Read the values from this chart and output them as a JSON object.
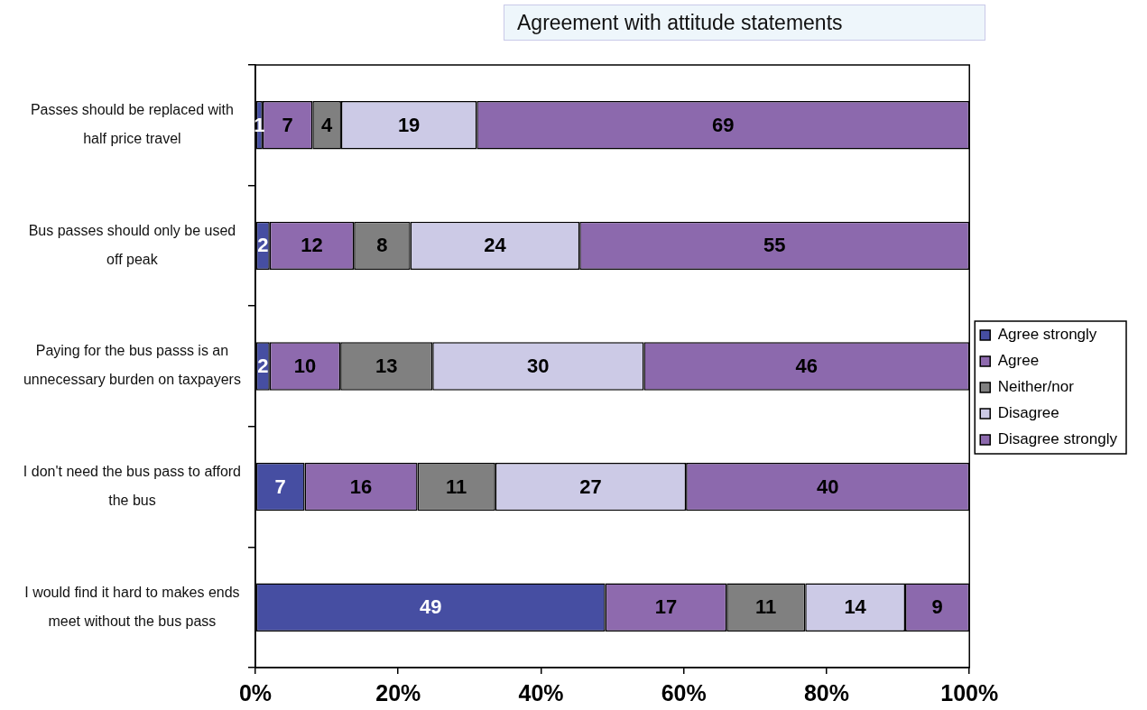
{
  "chart_data": {
    "type": "bar",
    "orientation": "horizontal",
    "stacked": true,
    "title": "Agreement with attitude statements",
    "categories": [
      "Passes should be replaced with half price travel",
      "Bus passes should only be used off peak",
      "Paying for the bus passs is an unnecessary burden on taxpayers",
      "I don't need the bus pass to afford the bus",
      "I would find it hard to makes ends meet without the bus pass"
    ],
    "series": [
      {
        "name": "Agree strongly",
        "color": "#464ea2",
        "values": [
          1,
          2,
          2,
          6.9,
          49
        ],
        "value_labels": [
          "1",
          "2",
          "2",
          "7",
          "49"
        ]
      },
      {
        "name": "Agree",
        "color": "#8e6aae",
        "values": [
          7,
          11.8,
          9.9,
          15.8,
          17
        ],
        "value_labels": [
          "7",
          "12",
          "10",
          "16",
          "17"
        ]
      },
      {
        "name": "Neither/nor",
        "color": "#808080",
        "values": [
          4,
          7.9,
          12.9,
          10.9,
          11
        ],
        "value_labels": [
          "4",
          "8",
          "13",
          "11",
          "11"
        ]
      },
      {
        "name": "Disagree",
        "color": "#cccae6",
        "values": [
          19,
          23.7,
          29.6,
          26.7,
          14
        ],
        "value_labels": [
          "19",
          "24",
          "30",
          "27",
          "14"
        ]
      },
      {
        "name": "Disagree strongly",
        "color": "#8c69ad",
        "values": [
          69,
          54.6,
          45.6,
          39.7,
          9
        ],
        "value_labels": [
          "69",
          "55",
          "46",
          "40",
          "9"
        ]
      }
    ],
    "xlim": [
      0,
      100
    ],
    "xticks": [
      {
        "value": 0,
        "label": "0%"
      },
      {
        "value": 20,
        "label": "20%"
      },
      {
        "value": 40,
        "label": "40%"
      },
      {
        "value": 60,
        "label": "60%"
      },
      {
        "value": 80,
        "label": "80%"
      },
      {
        "value": 100,
        "label": "100%"
      }
    ],
    "legend": "right"
  }
}
